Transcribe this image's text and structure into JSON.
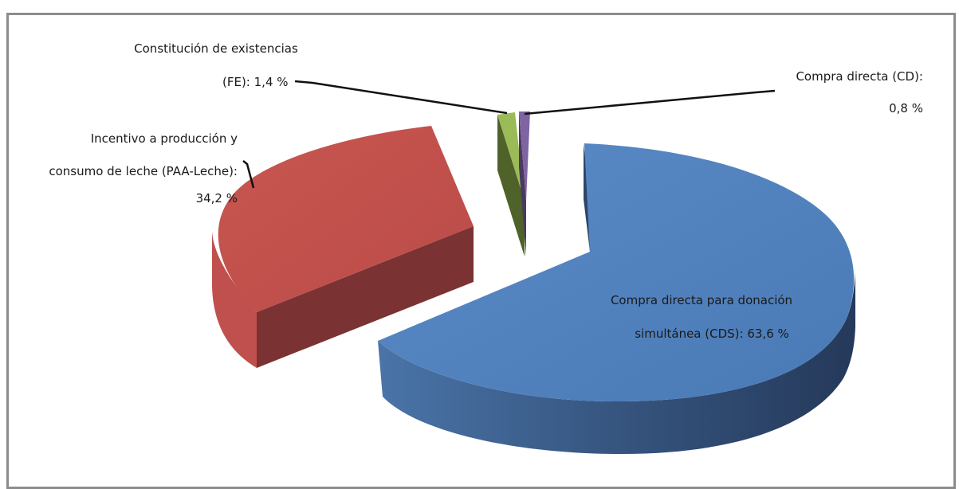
{
  "chart_data": {
    "type": "pie",
    "style": "3d-exploded",
    "slices": [
      {
        "label_lines": [
          "Compra directa para donación",
          "simultánea (CDS): 63,6 %"
        ],
        "value": 63.6,
        "color": "#4f81bd",
        "side_color": "#2d4668"
      },
      {
        "label_lines": [
          "Incentivo a producción y",
          "consumo de leche (PAA-Leche):",
          "34,2 %"
        ],
        "value": 34.2,
        "color": "#c0504d",
        "side_color": "#772f31"
      },
      {
        "label_lines": [
          "Constitución de existencias",
          "(FE): 1,4 %"
        ],
        "value": 1.4,
        "color": "#9bbb59",
        "side_color": "#4f6229"
      },
      {
        "label_lines": [
          "Compra directa (CD):",
          "0,8 %"
        ],
        "value": 0.8,
        "color": "#8064a2",
        "side_color": "#4b3a60"
      }
    ]
  }
}
